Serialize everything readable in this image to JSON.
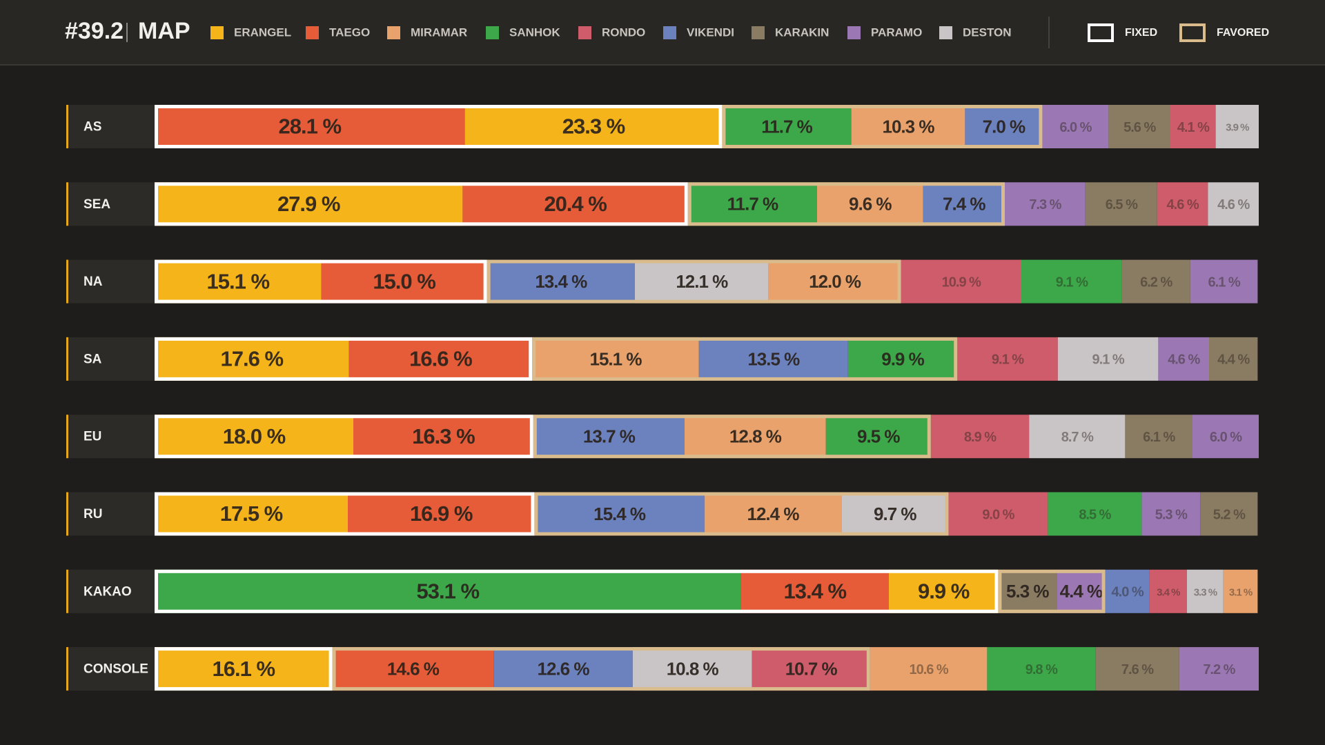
{
  "chart_data": {
    "type": "stacked-bar",
    "title": "#39.2",
    "subtitle": "MAP",
    "xlim": [
      0,
      100
    ],
    "legend": [
      {
        "name": "ERANGEL",
        "color": "#f4b41a"
      },
      {
        "name": "TAEGO",
        "color": "#e65c38"
      },
      {
        "name": "MIRAMAR",
        "color": "#e9a26c"
      },
      {
        "name": "SANHOK",
        "color": "#3ca84a"
      },
      {
        "name": "RONDO",
        "color": "#cf5c6a"
      },
      {
        "name": "VIKENDI",
        "color": "#6b82bf"
      },
      {
        "name": "KARAKIN",
        "color": "#8a7b63"
      },
      {
        "name": "PARAMO",
        "color": "#9b78b3"
      },
      {
        "name": "DESTON",
        "color": "#c9c5c7"
      }
    ],
    "frames": [
      {
        "label": "FIXED",
        "color": "#ffffff"
      },
      {
        "label": "FAVORED",
        "color": "#d9bb8c"
      }
    ],
    "rows": [
      {
        "region": "AS",
        "segments": [
          {
            "map": "TAEGO",
            "value": 28.1,
            "label": "28.1 %",
            "frame": "FIXED"
          },
          {
            "map": "ERANGEL",
            "value": 23.3,
            "label": "23.3 %",
            "frame": "FIXED"
          },
          {
            "map": "SANHOK",
            "value": 11.7,
            "label": "11.7 %",
            "frame": "FAVORED"
          },
          {
            "map": "MIRAMAR",
            "value": 10.3,
            "label": "10.3 %",
            "frame": "FAVORED"
          },
          {
            "map": "VIKENDI",
            "value": 7.0,
            "label": "7.0 %",
            "frame": "FAVORED"
          },
          {
            "map": "PARAMO",
            "value": 6.0,
            "label": "6.0 %"
          },
          {
            "map": "KARAKIN",
            "value": 5.6,
            "label": "5.6 %"
          },
          {
            "map": "RONDO",
            "value": 4.1,
            "label": "4.1 %"
          },
          {
            "map": "DESTON",
            "value": 3.9,
            "label": "3.9 %"
          }
        ]
      },
      {
        "region": "SEA",
        "segments": [
          {
            "map": "ERANGEL",
            "value": 27.9,
            "label": "27.9 %",
            "frame": "FIXED"
          },
          {
            "map": "TAEGO",
            "value": 20.4,
            "label": "20.4 %",
            "frame": "FIXED"
          },
          {
            "map": "SANHOK",
            "value": 11.7,
            "label": "11.7 %",
            "frame": "FAVORED"
          },
          {
            "map": "MIRAMAR",
            "value": 9.6,
            "label": "9.6 %",
            "frame": "FAVORED"
          },
          {
            "map": "VIKENDI",
            "value": 7.4,
            "label": "7.4 %",
            "frame": "FAVORED"
          },
          {
            "map": "PARAMO",
            "value": 7.3,
            "label": "7.3 %"
          },
          {
            "map": "KARAKIN",
            "value": 6.5,
            "label": "6.5 %"
          },
          {
            "map": "RONDO",
            "value": 4.6,
            "label": "4.6 %"
          },
          {
            "map": "DESTON",
            "value": 4.6,
            "label": "4.6 %"
          }
        ]
      },
      {
        "region": "NA",
        "segments": [
          {
            "map": "ERANGEL",
            "value": 15.1,
            "label": "15.1 %",
            "frame": "FIXED"
          },
          {
            "map": "TAEGO",
            "value": 15.0,
            "label": "15.0 %",
            "frame": "FIXED"
          },
          {
            "map": "VIKENDI",
            "value": 13.4,
            "label": "13.4 %",
            "frame": "FAVORED"
          },
          {
            "map": "DESTON",
            "value": 12.1,
            "label": "12.1 %",
            "frame": "FAVORED"
          },
          {
            "map": "MIRAMAR",
            "value": 12.0,
            "label": "12.0 %",
            "frame": "FAVORED"
          },
          {
            "map": "RONDO",
            "value": 10.9,
            "label": "10.9 %"
          },
          {
            "map": "SANHOK",
            "value": 9.1,
            "label": "9.1 %"
          },
          {
            "map": "KARAKIN",
            "value": 6.2,
            "label": "6.2 %"
          },
          {
            "map": "PARAMO",
            "value": 6.1,
            "label": "6.1 %"
          }
        ]
      },
      {
        "region": "SA",
        "segments": [
          {
            "map": "ERANGEL",
            "value": 17.6,
            "label": "17.6 %",
            "frame": "FIXED"
          },
          {
            "map": "TAEGO",
            "value": 16.6,
            "label": "16.6 %",
            "frame": "FIXED"
          },
          {
            "map": "MIRAMAR",
            "value": 15.1,
            "label": "15.1 %",
            "frame": "FAVORED"
          },
          {
            "map": "VIKENDI",
            "value": 13.5,
            "label": "13.5 %",
            "frame": "FAVORED"
          },
          {
            "map": "SANHOK",
            "value": 9.9,
            "label": "9.9 %",
            "frame": "FAVORED"
          },
          {
            "map": "RONDO",
            "value": 9.1,
            "label": "9.1 %"
          },
          {
            "map": "DESTON",
            "value": 9.1,
            "label": "9.1 %"
          },
          {
            "map": "PARAMO",
            "value": 4.6,
            "label": "4.6 %"
          },
          {
            "map": "KARAKIN",
            "value": 4.4,
            "label": "4.4 %"
          }
        ]
      },
      {
        "region": "EU",
        "segments": [
          {
            "map": "ERANGEL",
            "value": 18.0,
            "label": "18.0 %",
            "frame": "FIXED"
          },
          {
            "map": "TAEGO",
            "value": 16.3,
            "label": "16.3 %",
            "frame": "FIXED"
          },
          {
            "map": "VIKENDI",
            "value": 13.7,
            "label": "13.7 %",
            "frame": "FAVORED"
          },
          {
            "map": "MIRAMAR",
            "value": 12.8,
            "label": "12.8 %",
            "frame": "FAVORED"
          },
          {
            "map": "SANHOK",
            "value": 9.5,
            "label": "9.5 %",
            "frame": "FAVORED"
          },
          {
            "map": "RONDO",
            "value": 8.9,
            "label": "8.9 %"
          },
          {
            "map": "DESTON",
            "value": 8.7,
            "label": "8.7 %"
          },
          {
            "map": "KARAKIN",
            "value": 6.1,
            "label": "6.1 %"
          },
          {
            "map": "PARAMO",
            "value": 6.0,
            "label": "6.0 %"
          }
        ]
      },
      {
        "region": "RU",
        "segments": [
          {
            "map": "ERANGEL",
            "value": 17.5,
            "label": "17.5 %",
            "frame": "FIXED"
          },
          {
            "map": "TAEGO",
            "value": 16.9,
            "label": "16.9 %",
            "frame": "FIXED"
          },
          {
            "map": "VIKENDI",
            "value": 15.4,
            "label": "15.4 %",
            "frame": "FAVORED"
          },
          {
            "map": "MIRAMAR",
            "value": 12.4,
            "label": "12.4 %",
            "frame": "FAVORED"
          },
          {
            "map": "DESTON",
            "value": 9.7,
            "label": "9.7 %",
            "frame": "FAVORED"
          },
          {
            "map": "RONDO",
            "value": 9.0,
            "label": "9.0 %"
          },
          {
            "map": "SANHOK",
            "value": 8.5,
            "label": "8.5 %"
          },
          {
            "map": "PARAMO",
            "value": 5.3,
            "label": "5.3 %"
          },
          {
            "map": "KARAKIN",
            "value": 5.2,
            "label": "5.2 %"
          }
        ]
      },
      {
        "region": "KAKAO",
        "segments": [
          {
            "map": "SANHOK",
            "value": 53.1,
            "label": "53.1 %",
            "frame": "FIXED"
          },
          {
            "map": "TAEGO",
            "value": 13.4,
            "label": "13.4 %",
            "frame": "FIXED"
          },
          {
            "map": "ERANGEL",
            "value": 9.9,
            "label": "9.9 %",
            "frame": "FIXED"
          },
          {
            "map": "KARAKIN",
            "value": 5.3,
            "label": "5.3 %",
            "frame": "FAVORED"
          },
          {
            "map": "PARAMO",
            "value": 4.4,
            "label": "4.4 %",
            "frame": "FAVORED"
          },
          {
            "map": "VIKENDI",
            "value": 4.0,
            "label": "4.0 %"
          },
          {
            "map": "RONDO",
            "value": 3.4,
            "label": "3.4 %"
          },
          {
            "map": "DESTON",
            "value": 3.3,
            "label": "3.3 %"
          },
          {
            "map": "MIRAMAR",
            "value": 3.1,
            "label": "3.1 %"
          }
        ]
      },
      {
        "region": "CONSOLE",
        "segments": [
          {
            "map": "ERANGEL",
            "value": 16.1,
            "label": "16.1 %",
            "frame": "FIXED"
          },
          {
            "map": "TAEGO",
            "value": 14.6,
            "label": "14.6 %",
            "frame": "FAVORED"
          },
          {
            "map": "VIKENDI",
            "value": 12.6,
            "label": "12.6 %",
            "frame": "FAVORED"
          },
          {
            "map": "DESTON",
            "value": 10.8,
            "label": "10.8 %",
            "frame": "FAVORED"
          },
          {
            "map": "RONDO",
            "value": 10.7,
            "label": "10.7 %",
            "frame": "FAVORED"
          },
          {
            "map": "MIRAMAR",
            "value": 10.6,
            "label": "10.6 %"
          },
          {
            "map": "SANHOK",
            "value": 9.8,
            "label": "9.8 %"
          },
          {
            "map": "KARAKIN",
            "value": 7.6,
            "label": "7.6 %"
          },
          {
            "map": "PARAMO",
            "value": 7.2,
            "label": "7.2 %"
          }
        ]
      }
    ]
  }
}
